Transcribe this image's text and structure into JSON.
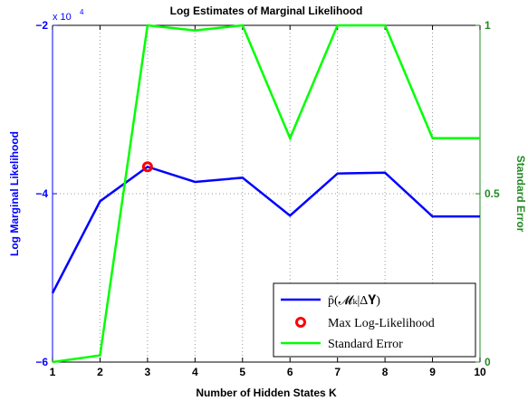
{
  "chart_data": {
    "type": "line",
    "title": "Log Estimates of Marginal Likelihood",
    "xlabel": "Number of Hidden States K",
    "ylabel_left": "Log Marginal Likelihood",
    "ylabel_right": "Standard Error",
    "left_axis_exponent_label": "x 10",
    "left_axis_exponent_power": "4",
    "x": [
      1,
      2,
      3,
      4,
      5,
      6,
      7,
      8,
      9,
      10
    ],
    "x_ticks": [
      "1",
      "2",
      "3",
      "4",
      "5",
      "6",
      "7",
      "8",
      "9",
      "10"
    ],
    "xlim": [
      1,
      10
    ],
    "ylim_left": [
      -60000,
      -20000
    ],
    "y_ticks_left": [
      {
        "value": -60000,
        "label": "−6"
      },
      {
        "value": -40000,
        "label": "−4"
      },
      {
        "value": -20000,
        "label": "−2"
      }
    ],
    "ylim_right": [
      0,
      1
    ],
    "y_ticks_right": [
      {
        "value": 0,
        "label": "0"
      },
      {
        "value": 0.5,
        "label": "0.5"
      },
      {
        "value": 1,
        "label": "1"
      }
    ],
    "grid": true,
    "legend_position": "bottom-right",
    "series": [
      {
        "name": "p̂(𝓜ₖ|Δ𝐘)",
        "axis": "left",
        "color": "#0000ff",
        "values": [
          -51800,
          -40900,
          -36800,
          -38600,
          -38100,
          -42600,
          -37600,
          -37500,
          -42700,
          -42700
        ]
      },
      {
        "name": "Standard Error",
        "axis": "right",
        "color": "#00ff00",
        "values": [
          0.0,
          0.02,
          1.0,
          0.985,
          1.0,
          0.665,
          1.0,
          1.0,
          0.665,
          0.665
        ]
      }
    ],
    "marker": {
      "name": "Max Log-Likelihood",
      "x": 3,
      "y": -36800,
      "color": "#ff0000"
    }
  }
}
